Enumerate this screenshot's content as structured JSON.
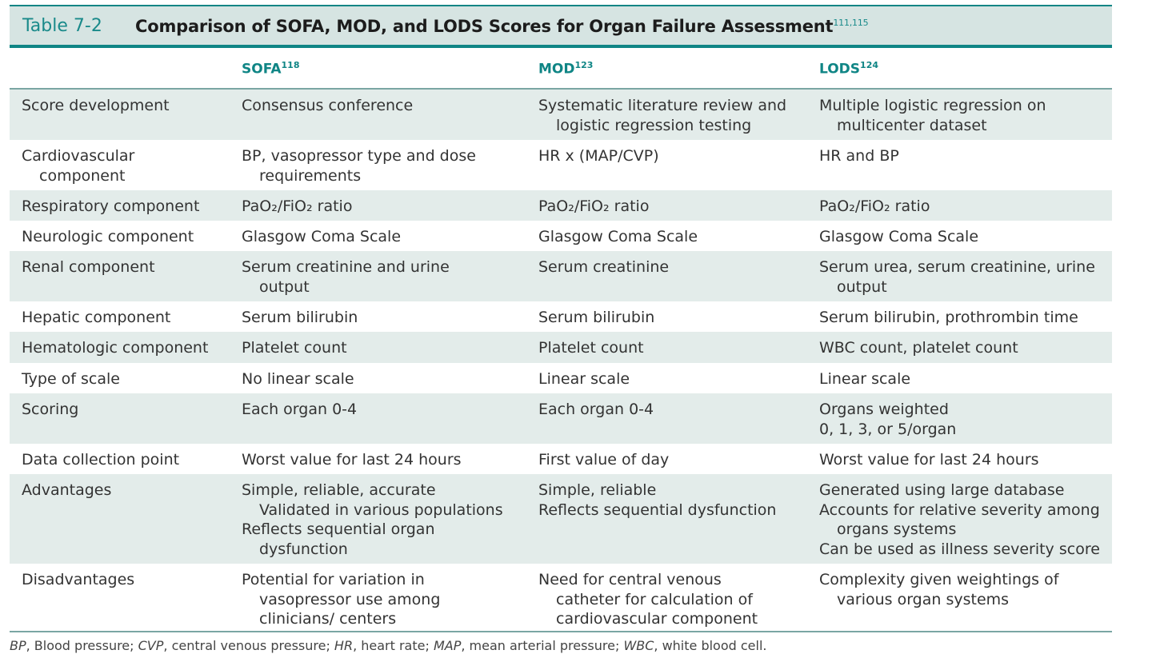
{
  "title": {
    "label": "Table 7-2",
    "text": "Comparison of SOFA, MOD, and LODS Scores for Organ Failure Assessment",
    "refs": "111,115"
  },
  "columns": [
    {
      "name": "SOFA",
      "ref": "118"
    },
    {
      "name": "MOD",
      "ref": "123"
    },
    {
      "name": "LODS",
      "ref": "124"
    }
  ],
  "rows": [
    {
      "label": [
        "Score development"
      ],
      "sofa": [
        "Consensus conference"
      ],
      "mod": [
        "Systematic literature review and",
        "~logistic regression testing"
      ],
      "lods": [
        "Multiple logistic regression on",
        "~multicenter dataset"
      ]
    },
    {
      "label": [
        "Cardiovascular",
        "~component"
      ],
      "sofa": [
        "BP, vasopressor type and dose",
        "~requirements"
      ],
      "mod": [
        "HR x (MAP/CVP)"
      ],
      "lods": [
        "HR and BP"
      ]
    },
    {
      "label": [
        "Respiratory component"
      ],
      "sofa": [
        "PaO₂/FiO₂ ratio"
      ],
      "mod": [
        "PaO₂/FiO₂ ratio"
      ],
      "lods": [
        "PaO₂/FiO₂ ratio"
      ]
    },
    {
      "label": [
        "Neurologic component"
      ],
      "sofa": [
        "Glasgow Coma Scale"
      ],
      "mod": [
        "Glasgow Coma Scale"
      ],
      "lods": [
        "Glasgow Coma Scale"
      ]
    },
    {
      "label": [
        "Renal component"
      ],
      "sofa": [
        "Serum creatinine and urine",
        "~output"
      ],
      "mod": [
        "Serum creatinine"
      ],
      "lods": [
        "Serum urea, serum creatinine, urine",
        "~output"
      ]
    },
    {
      "label": [
        "Hepatic component"
      ],
      "sofa": [
        "Serum bilirubin"
      ],
      "mod": [
        "Serum bilirubin"
      ],
      "lods": [
        "Serum bilirubin, prothrombin time"
      ]
    },
    {
      "label": [
        "Hematologic component"
      ],
      "sofa": [
        "Platelet count"
      ],
      "mod": [
        "Platelet count"
      ],
      "lods": [
        "WBC count, platelet count"
      ]
    },
    {
      "label": [
        "Type of scale"
      ],
      "sofa": [
        "No linear scale"
      ],
      "mod": [
        "Linear scale"
      ],
      "lods": [
        "Linear scale"
      ]
    },
    {
      "label": [
        "Scoring"
      ],
      "sofa": [
        "Each organ 0-4"
      ],
      "mod": [
        "Each organ 0-4"
      ],
      "lods": [
        "Organs weighted",
        "0, 1, 3, or 5/organ"
      ]
    },
    {
      "label": [
        "Data collection point"
      ],
      "sofa": [
        "Worst value for last 24 hours"
      ],
      "mod": [
        "First value of day"
      ],
      "lods": [
        "Worst value for last 24 hours"
      ]
    },
    {
      "label": [
        "Advantages"
      ],
      "sofa": [
        "Simple, reliable, accurate",
        "~Validated in various populations",
        "Reflects sequential organ",
        "~dysfunction"
      ],
      "mod": [
        "Simple, reliable",
        "Reflects sequential dysfunction"
      ],
      "lods": [
        "Generated using large database",
        "Accounts for relative severity among",
        "~organs systems",
        "Can be used as illness severity score"
      ]
    },
    {
      "label": [
        "Disadvantages"
      ],
      "sofa": [
        "Potential for variation in",
        "~vasopressor use among",
        "~clinicians/ centers"
      ],
      "mod": [
        "Need for central venous",
        "~catheter for calculation of",
        "~cardiovascular component"
      ],
      "lods": [
        "Complexity given weightings of",
        "~various organ systems"
      ]
    }
  ],
  "footnote": [
    {
      "abbr": "BP",
      "text": ", Blood pressure; "
    },
    {
      "abbr": "CVP",
      "text": ", central venous pressure; "
    },
    {
      "abbr": "HR",
      "text": ", heart rate; "
    },
    {
      "abbr": "MAP",
      "text": ", mean arterial pressure; "
    },
    {
      "abbr": "WBC",
      "text": ", white blood cell."
    }
  ]
}
